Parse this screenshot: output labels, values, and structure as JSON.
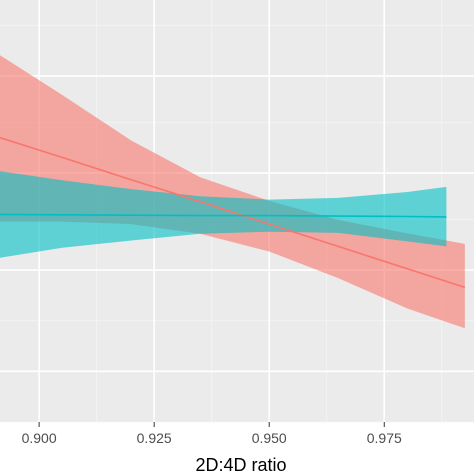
{
  "chart_data": {
    "type": "line",
    "title": "",
    "xlabel": "2D:4D ratio",
    "ylabel": "",
    "xlim": [
      0.8915,
      0.9945
    ],
    "ylim": [
      0,
      1
    ],
    "grid": true,
    "legend": "none",
    "x_ticks": [
      {
        "value": 0.9,
        "label": "0.900"
      },
      {
        "value": 0.925,
        "label": "0.925"
      },
      {
        "value": 0.95,
        "label": "0.950"
      },
      {
        "value": 0.975,
        "label": "0.975"
      }
    ],
    "y_gridlines": [
      0.12,
      0.36,
      0.59,
      0.82
    ],
    "series": [
      {
        "color": "#F8766D",
        "x": [
          0.8915,
          0.905,
          0.92,
          0.935,
          0.95,
          0.965,
          0.98,
          0.9925
        ],
        "fit": [
          0.674,
          0.627,
          0.574,
          0.522,
          0.469,
          0.416,
          0.363,
          0.319
        ],
        "upper": [
          0.869,
          0.775,
          0.667,
          0.58,
          0.524,
          0.479,
          0.447,
          0.422
        ],
        "lower": [
          0.475,
          0.475,
          0.469,
          0.446,
          0.404,
          0.341,
          0.269,
          0.222
        ]
      },
      {
        "color": "#00BFC4",
        "x": [
          0.8915,
          0.905,
          0.92,
          0.935,
          0.95,
          0.965,
          0.98,
          0.9885
        ],
        "fit": [
          0.492,
          0.491,
          0.49,
          0.489,
          0.489,
          0.488,
          0.487,
          0.486
        ],
        "upper": [
          0.594,
          0.573,
          0.552,
          0.535,
          0.527,
          0.531,
          0.545,
          0.557
        ],
        "lower": [
          0.389,
          0.413,
          0.43,
          0.446,
          0.451,
          0.448,
          0.428,
          0.416
        ]
      }
    ]
  }
}
